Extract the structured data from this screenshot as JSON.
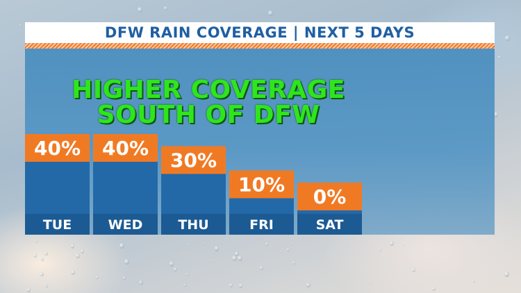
{
  "title": "DFW RAIN COVERAGE | NEXT 5 DAYS",
  "headline_lines": [
    "HIGHER COVERAGE",
    "SOUTH OF DFW"
  ],
  "colors": {
    "bar": "#2369a8",
    "bar_dark": "#1c5a93",
    "label_box": "#f07a24",
    "title_text": "#1f5fa3",
    "headline": "#2fe51c"
  },
  "chart_data": {
    "type": "bar",
    "categories": [
      "TUE",
      "WED",
      "THU",
      "FRI",
      "SAT"
    ],
    "values": [
      40,
      40,
      30,
      10,
      0
    ],
    "value_labels": [
      "40%",
      "40%",
      "30%",
      "10%",
      "0%"
    ],
    "title": "DFW RAIN COVERAGE | NEXT 5 DAYS",
    "xlabel": "",
    "ylabel": "",
    "ylim": [
      0,
      40
    ],
    "grid": false
  }
}
